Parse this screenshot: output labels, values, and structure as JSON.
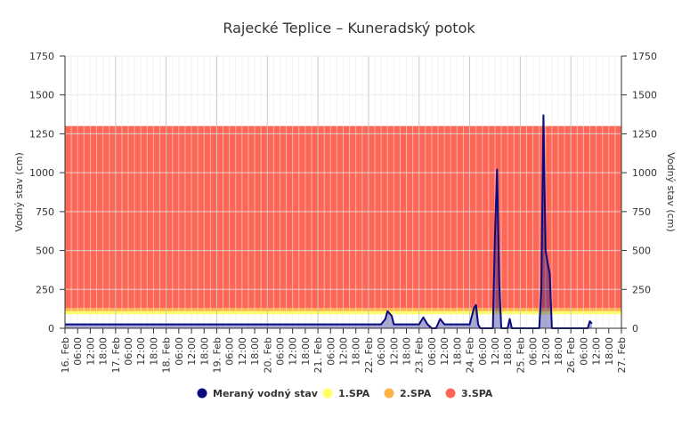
{
  "chart_data": {
    "type": "area",
    "title": "Rajecké Teplice – Kuneradský potok",
    "ylabel_left": "Vodný stav (cm)",
    "ylabel_right": "Vodný stav (cm)",
    "ylim": [
      0,
      1750
    ],
    "yticks": [
      0,
      250,
      500,
      750,
      1000,
      1250,
      1500,
      1750
    ],
    "xlim_hours": [
      0,
      264
    ],
    "x_tick_labels": [
      "16. Feb",
      "06:00",
      "12:00",
      "18:00",
      "17. Feb",
      "06:00",
      "12:00",
      "18:00",
      "18. Feb",
      "06:00",
      "12:00",
      "18:00",
      "19. Feb",
      "06:00",
      "12:00",
      "18:00",
      "20. Feb",
      "06:00",
      "12:00",
      "18:00",
      "21. Feb",
      "06:00",
      "12:00",
      "18:00",
      "22. Feb",
      "06:00",
      "12:00",
      "18:00",
      "23. Feb",
      "06:00",
      "12:00",
      "18:00",
      "24. Feb",
      "06:00",
      "12:00",
      "18:00",
      "25. Feb",
      "06:00",
      "12:00",
      "18:00",
      "26. Feb",
      "06:00",
      "12:00",
      "18:00",
      "27. Feb"
    ],
    "zones": [
      {
        "name": "1.SPA",
        "from": 90,
        "to": 110,
        "color": "#FFFF66"
      },
      {
        "name": "2.SPA",
        "from": 110,
        "to": 130,
        "color": "#FFB347"
      },
      {
        "name": "3.SPA",
        "from": 130,
        "to": 1300,
        "color": "#FF6655"
      }
    ],
    "series": [
      {
        "name": "Meraný vodný stav",
        "color": "#0A0A80",
        "x_hours": [
          0,
          20,
          40,
          60,
          80,
          100,
          120,
          140,
          150,
          152,
          153,
          155,
          156,
          168,
          170,
          172,
          174,
          176,
          178,
          180,
          183,
          186,
          189,
          192,
          194,
          195,
          196,
          197,
          199,
          202,
          203,
          204,
          205,
          206,
          207,
          208,
          209,
          210,
          211,
          212,
          217,
          218,
          219,
          220,
          221,
          222,
          225,
          226,
          227,
          228,
          229,
          230,
          231,
          232,
          239,
          248,
          249,
          250,
          251,
          252
        ],
        "values": [
          25,
          25,
          25,
          25,
          25,
          25,
          25,
          25,
          25,
          60,
          110,
          80,
          25,
          25,
          70,
          25,
          0,
          0,
          60,
          25,
          25,
          25,
          25,
          25,
          130,
          150,
          25,
          0,
          0,
          0,
          0,
          600,
          1020,
          300,
          0,
          0,
          0,
          0,
          60,
          0,
          0,
          0,
          0,
          0,
          0,
          0,
          0,
          250,
          1370,
          500,
          420,
          350,
          0,
          0,
          0,
          0,
          45,
          30,
          null,
          null
        ]
      }
    ],
    "legend": [
      {
        "name": "Meraný vodný stav",
        "color": "#0A0A80"
      },
      {
        "name": "1.SPA",
        "color": "#FFFF66"
      },
      {
        "name": "2.SPA",
        "color": "#FFB347"
      },
      {
        "name": "3.SPA",
        "color": "#FF6655"
      }
    ],
    "legend_position": "bottom"
  }
}
